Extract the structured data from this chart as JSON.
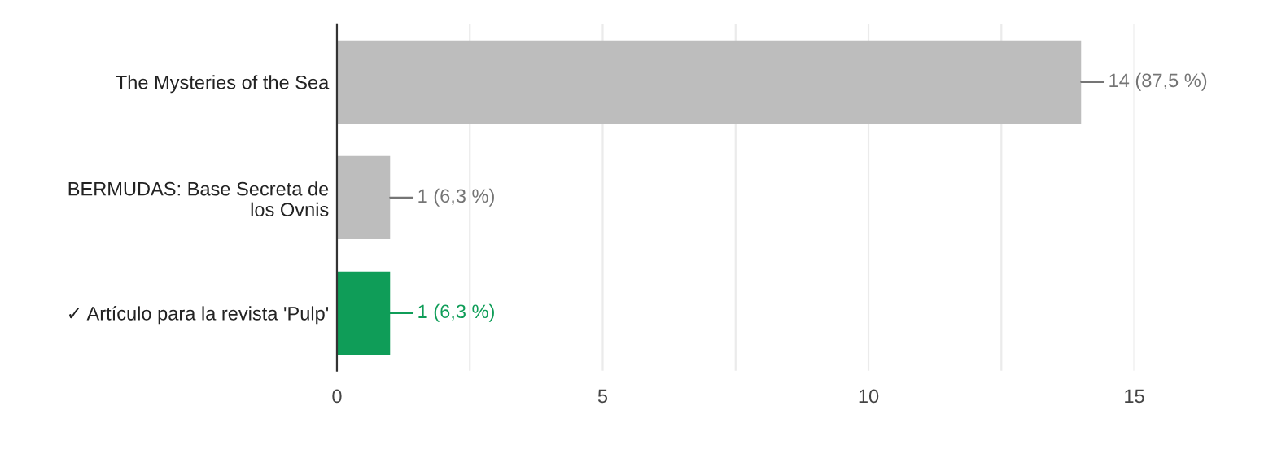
{
  "chart_data": {
    "type": "bar",
    "orientation": "horizontal",
    "categories": [
      "The Mysteries of the Sea",
      "BERMUDAS: Base Secreta de\nlos Ovnis",
      "✓ Artículo para la revista 'Pulp'"
    ],
    "values": [
      14,
      1,
      1
    ],
    "colors": [
      "#bdbdbd",
      "#bdbdbd",
      "#0f9d58"
    ],
    "value_labels": [
      "14 (87,5 %)",
      "1 (6,3 %)",
      "1 (6,3 %)"
    ],
    "xlim": [
      0,
      15
    ],
    "xticks": [
      0,
      {
        "value": 2.5,
        "label": null
      },
      5,
      {
        "value": 7.5,
        "label": null
      },
      10,
      {
        "value": 12.5,
        "label": null
      },
      15
    ],
    "grid": "x"
  }
}
